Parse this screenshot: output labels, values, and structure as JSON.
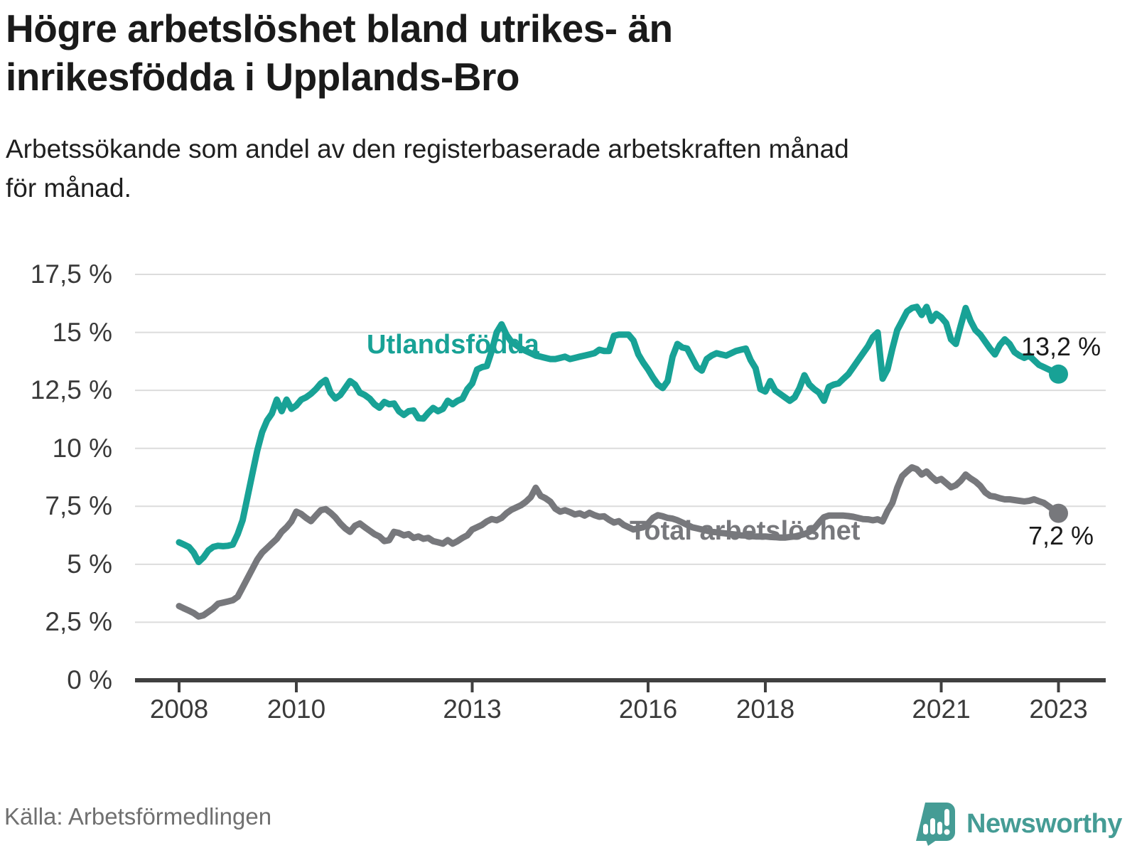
{
  "title": {
    "line1": "Högre arbetslöshet bland utrikes- än",
    "line2": "inrikesfödda i Upplands-Bro"
  },
  "subtitle": {
    "line1": "Arbetssökande som andel av den registerbaserade arbetskraften månad",
    "line2": "för månad."
  },
  "footer": {
    "source": "Källa: Arbetsförmedlingen",
    "brand": "Newsworthy"
  },
  "colors": {
    "foreign_born_line": "#18a296",
    "total_line": "#77787c",
    "gridline": "#dcdcdc",
    "axis": "#404040",
    "tick_text": "#3a3a3a",
    "value_text": "#1a1a1a",
    "logo_teal": "#459c95"
  },
  "chart_data": {
    "type": "line",
    "x_unit": "month",
    "x_range": [
      "2008-01",
      "2023-01"
    ],
    "ylim": [
      0,
      17.5
    ],
    "grid": true,
    "legend": "inline-labels",
    "yticks": [
      {
        "value": 17.5,
        "label": "17,5 %"
      },
      {
        "value": 15,
        "label": "15 %"
      },
      {
        "value": 12.5,
        "label": "12,5 %"
      },
      {
        "value": 10,
        "label": "10 %"
      },
      {
        "value": 7.5,
        "label": "7,5 %"
      },
      {
        "value": 5,
        "label": "5 %"
      },
      {
        "value": 2.5,
        "label": "2,5 %"
      },
      {
        "value": 0,
        "label": "0 %"
      }
    ],
    "xticks": [
      {
        "value": 2008,
        "label": "2008"
      },
      {
        "value": 2010,
        "label": "2010"
      },
      {
        "value": 2013,
        "label": "2013"
      },
      {
        "value": 2016,
        "label": "2016"
      },
      {
        "value": 2018,
        "label": "2018"
      },
      {
        "value": 2021,
        "label": "2021"
      },
      {
        "value": 2023,
        "label": "2023"
      }
    ],
    "series": [
      {
        "name": "Utlandsfödda",
        "color": "#18a296",
        "end_label": "13,2 %",
        "end_value": 13.2,
        "values": [
          5.95,
          5.85,
          5.75,
          5.5,
          5.1,
          5.3,
          5.6,
          5.75,
          5.8,
          5.78,
          5.8,
          5.85,
          6.3,
          6.9,
          7.9,
          8.9,
          9.9,
          10.7,
          11.2,
          11.5,
          12.1,
          11.6,
          12.1,
          11.7,
          11.85,
          12.1,
          12.2,
          12.35,
          12.55,
          12.8,
          12.95,
          12.4,
          12.15,
          12.3,
          12.6,
          12.9,
          12.75,
          12.4,
          12.3,
          12.15,
          11.9,
          11.75,
          12.0,
          11.9,
          11.93,
          11.6,
          11.44,
          11.6,
          11.63,
          11.3,
          11.28,
          11.53,
          11.74,
          11.6,
          11.7,
          12.05,
          11.9,
          12.05,
          12.14,
          12.55,
          12.8,
          13.4,
          13.5,
          13.55,
          14.2,
          15.0,
          15.35,
          14.9,
          14.6,
          14.45,
          14.3,
          14.2,
          14.1,
          14.0,
          13.95,
          13.9,
          13.85,
          13.85,
          13.9,
          13.95,
          13.85,
          13.9,
          13.95,
          14.0,
          14.05,
          14.1,
          14.25,
          14.2,
          14.2,
          14.85,
          14.9,
          14.9,
          14.9,
          14.65,
          14.05,
          13.7,
          13.4,
          13.05,
          12.75,
          12.6,
          12.9,
          13.95,
          14.5,
          14.35,
          14.3,
          13.9,
          13.5,
          13.35,
          13.85,
          14.0,
          14.1,
          14.05,
          14.0,
          14.1,
          14.2,
          14.25,
          14.3,
          13.8,
          13.45,
          12.55,
          12.45,
          12.9,
          12.5,
          12.35,
          12.2,
          12.05,
          12.2,
          12.6,
          13.15,
          12.75,
          12.55,
          12.4,
          12.05,
          12.65,
          12.75,
          12.8,
          13.0,
          13.2,
          13.5,
          13.8,
          14.1,
          14.4,
          14.8,
          15.0,
          13.0,
          13.4,
          14.3,
          15.1,
          15.5,
          15.9,
          16.05,
          16.1,
          15.75,
          16.1,
          15.5,
          15.8,
          15.65,
          15.4,
          14.7,
          14.5,
          15.3,
          16.05,
          15.5,
          15.1,
          14.9,
          14.6,
          14.3,
          14.05,
          14.45,
          14.7,
          14.5,
          14.15,
          14.0,
          13.9,
          14.0,
          13.8,
          13.6,
          13.5,
          13.4,
          13.3,
          13.2
        ]
      },
      {
        "name": "Total arbetslöshet",
        "color": "#77787c",
        "end_label": "7,2 %",
        "end_value": 7.2,
        "values": [
          3.2,
          3.1,
          3.0,
          2.9,
          2.75,
          2.8,
          2.95,
          3.1,
          3.3,
          3.35,
          3.4,
          3.45,
          3.6,
          4.0,
          4.4,
          4.8,
          5.2,
          5.5,
          5.7,
          5.9,
          6.1,
          6.4,
          6.6,
          6.85,
          7.27,
          7.17,
          7.0,
          6.86,
          7.1,
          7.33,
          7.38,
          7.22,
          7.02,
          6.76,
          6.55,
          6.4,
          6.66,
          6.76,
          6.6,
          6.45,
          6.3,
          6.2,
          6.0,
          6.04,
          6.4,
          6.35,
          6.25,
          6.3,
          6.14,
          6.2,
          6.1,
          6.14,
          6.0,
          5.95,
          5.89,
          6.04,
          5.89,
          6.0,
          6.14,
          6.25,
          6.5,
          6.6,
          6.7,
          6.85,
          6.95,
          6.9,
          7.0,
          7.2,
          7.35,
          7.45,
          7.55,
          7.7,
          7.9,
          8.3,
          7.95,
          7.85,
          7.7,
          7.4,
          7.27,
          7.33,
          7.25,
          7.15,
          7.2,
          7.1,
          7.22,
          7.12,
          7.05,
          7.07,
          6.92,
          6.8,
          6.86,
          6.7,
          6.6,
          6.5,
          6.55,
          6.6,
          6.76,
          7.0,
          7.12,
          7.07,
          7.0,
          6.97,
          6.9,
          6.8,
          6.7,
          6.6,
          6.55,
          6.5,
          6.45,
          6.4,
          6.38,
          6.35,
          6.33,
          6.3,
          6.28,
          6.25,
          6.24,
          6.22,
          6.2,
          6.2,
          6.2,
          6.18,
          6.17,
          6.15,
          6.15,
          6.18,
          6.2,
          6.25,
          6.3,
          6.4,
          6.55,
          6.8,
          7.03,
          7.1,
          7.1,
          7.1,
          7.1,
          7.08,
          7.05,
          7.0,
          6.95,
          6.94,
          6.9,
          6.94,
          6.85,
          7.3,
          7.65,
          8.3,
          8.8,
          9.0,
          9.18,
          9.1,
          8.87,
          9.0,
          8.78,
          8.6,
          8.68,
          8.5,
          8.32,
          8.41,
          8.6,
          8.87,
          8.7,
          8.57,
          8.38,
          8.1,
          7.95,
          7.92,
          7.85,
          7.8,
          7.8,
          7.77,
          7.74,
          7.71,
          7.74,
          7.8,
          7.72,
          7.65,
          7.5,
          7.35,
          7.2
        ]
      }
    ]
  }
}
